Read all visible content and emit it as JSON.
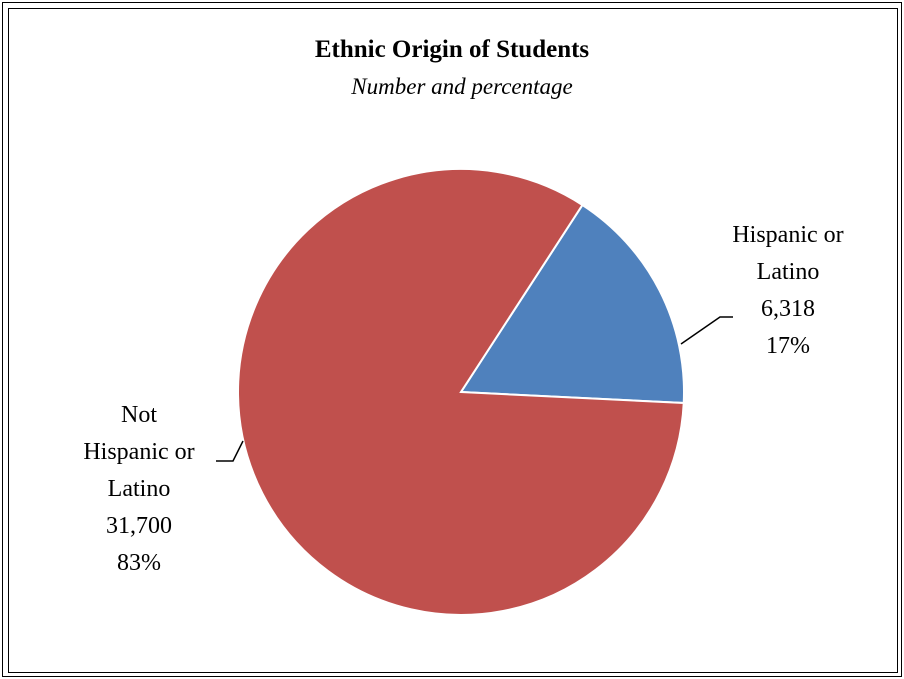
{
  "chart_data": {
    "type": "pie",
    "title": "Ethnic Origin of Students",
    "subtitle": "Number and percentage",
    "slices": [
      {
        "label_lines": [
          "Hispanic or",
          "Latino"
        ],
        "value": 6318,
        "value_text": "6,318",
        "percent": 17,
        "percent_text": "17%",
        "color": "#4F81BD"
      },
      {
        "label_lines": [
          "Not",
          "Hispanic or",
          "Latino"
        ],
        "value": 31700,
        "value_text": "31,700",
        "percent": 83,
        "percent_text": "83%",
        "color": "#C0504D"
      }
    ],
    "legend": "none",
    "start_angle_deg": 57
  }
}
